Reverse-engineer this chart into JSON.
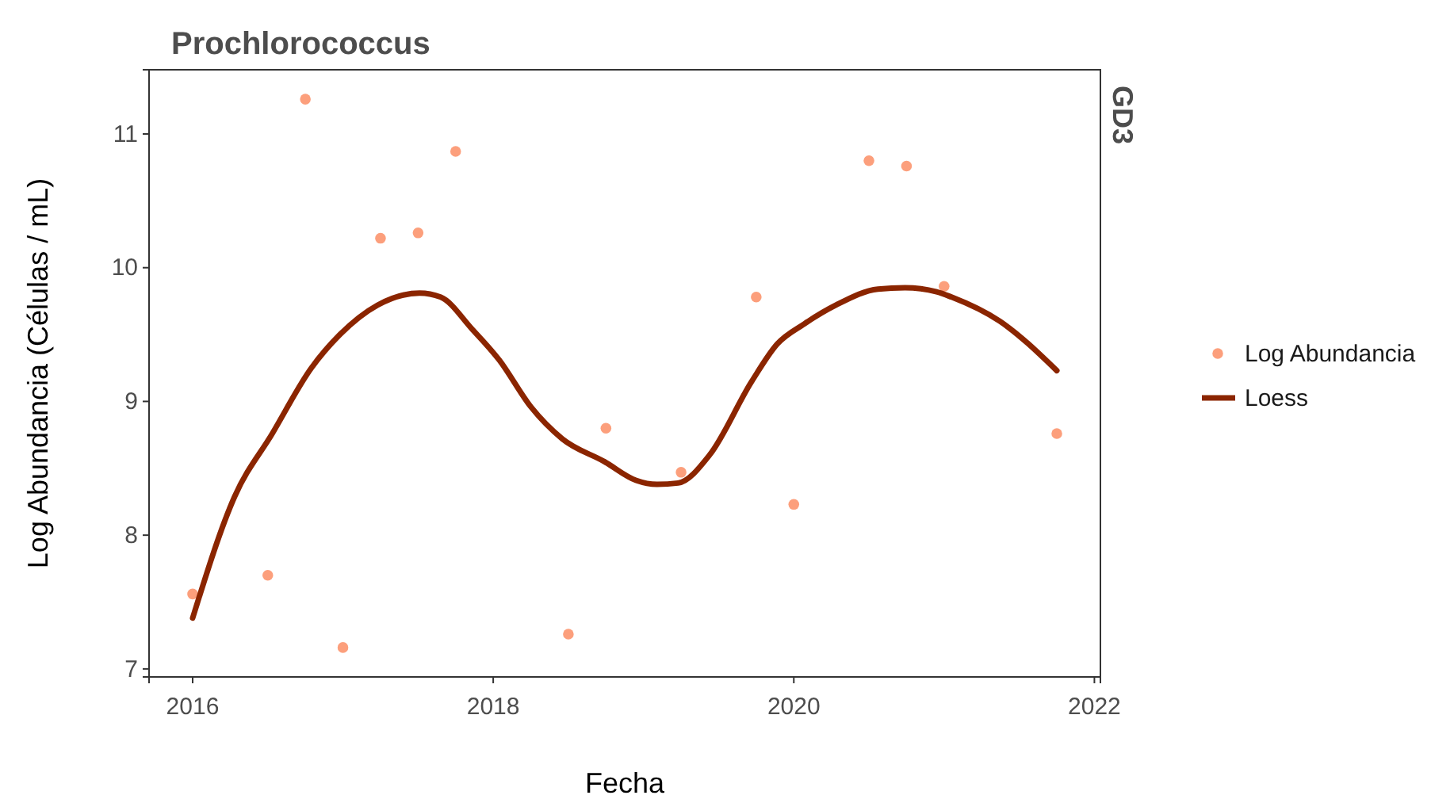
{
  "chart_data": {
    "type": "scatter",
    "title": "Prochlorococcus",
    "xlabel": "Fecha",
    "ylabel": "Log Abundancia (Células / mL)",
    "annotations": [
      "GD3"
    ],
    "xlim": [
      2015.71,
      2022.04
    ],
    "xticks": [
      2016,
      2018,
      2020,
      2022
    ],
    "ylim": [
      6.94,
      11.48
    ],
    "yticks": [
      7,
      8,
      9,
      10,
      11
    ],
    "grid": false,
    "legend": "right",
    "series": [
      {
        "name": "Log Abundancia",
        "marker": "circle",
        "color": "#fc9f7c",
        "x": [
          2016,
          2016.5,
          2016.75,
          2017,
          2017.25,
          2017.5,
          2017.75,
          2018.5,
          2018.75,
          2019.25,
          2019.75,
          2020,
          2020.5,
          2020.75,
          2021,
          2021.75
        ],
        "values": [
          7.56,
          7.7,
          11.26,
          7.16,
          10.22,
          10.26,
          10.87,
          7.26,
          8.8,
          8.47,
          9.78,
          8.23,
          10.8,
          10.76,
          9.86,
          8.76
        ]
      },
      {
        "name": "Loess",
        "type": "line",
        "color": "#8b2500",
        "line_style": "solid",
        "x": [
          2016,
          2016.28,
          2016.53,
          2016.79,
          2016.98,
          2017.23,
          2017.51,
          2017.65,
          2017.86,
          2018.04,
          2018.25,
          2018.46,
          2018.74,
          2018.95,
          2019.09,
          2019.23,
          2019.44,
          2019.72,
          2019.89,
          2020.07,
          2020.28,
          2020.56,
          2020.74,
          2020.95,
          2021.05,
          2021.37,
          2021.75
        ],
        "values": [
          7.38,
          8.29,
          8.76,
          9.25,
          9.5,
          9.72,
          9.81,
          9.78,
          9.54,
          9.31,
          8.96,
          8.72,
          8.55,
          8.41,
          8.38,
          8.39,
          8.6,
          9.15,
          9.43,
          9.58,
          9.72,
          9.84,
          9.85,
          9.82,
          9.78,
          9.6,
          9.23
        ]
      }
    ]
  }
}
